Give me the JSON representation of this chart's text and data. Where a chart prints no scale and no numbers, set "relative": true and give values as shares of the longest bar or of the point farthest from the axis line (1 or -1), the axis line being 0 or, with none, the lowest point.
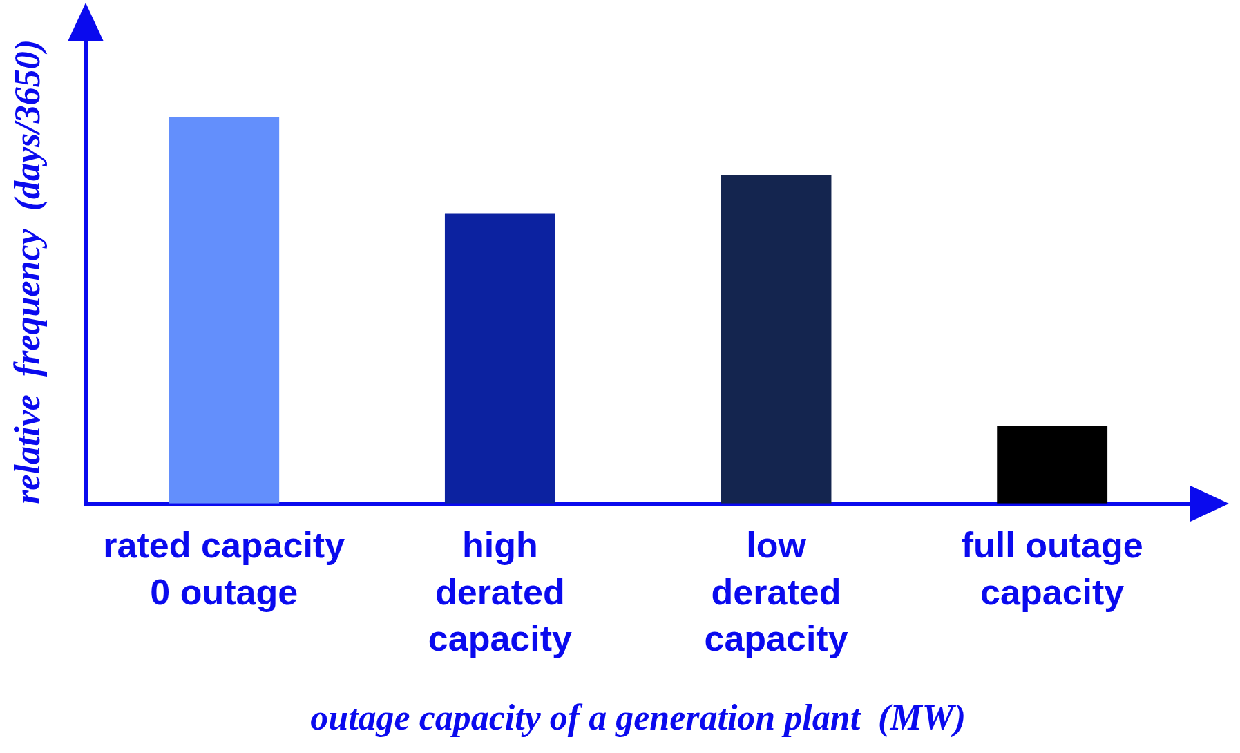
{
  "chart_data": {
    "type": "bar",
    "relative": true,
    "xlabel": "outage capacity of a generation plant  (MW)",
    "ylabel": "relative  frequency  (days/3650)",
    "categories": [
      "rated capacity\n0 outage",
      "high\nderated\ncapacity",
      "low\nderated\ncapacity",
      "full outage\ncapacity"
    ],
    "values": [
      1,
      0.75,
      0.85,
      0.2
    ],
    "colors": [
      "#638ffc",
      "#0c22a0",
      "#14254f",
      "#000000"
    ],
    "grid": false,
    "legend": false
  }
}
